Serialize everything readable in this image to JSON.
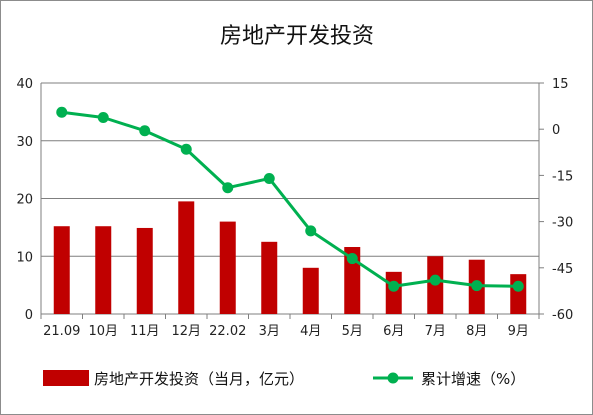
{
  "chart_data": {
    "title": "房地产开发投资",
    "type": "bar+line",
    "categories": [
      "21.09",
      "10月",
      "11月",
      "12月",
      "22.02",
      "3月",
      "4月",
      "5月",
      "6月",
      "7月",
      "8月",
      "9月"
    ],
    "series": [
      {
        "name": "房地产开发投资（当月，亿元）",
        "type": "bar",
        "axis": "left",
        "color": "#c00000",
        "values": [
          15.2,
          15.2,
          14.9,
          19.5,
          16.0,
          12.5,
          8.0,
          11.6,
          7.3,
          10.0,
          9.4,
          6.9
        ]
      },
      {
        "name": "累计增速（%）",
        "type": "line",
        "axis": "right",
        "color": "#00b050",
        "values": [
          5.5,
          3.8,
          -0.5,
          -6.5,
          -19.0,
          -16.0,
          -33.0,
          -42.0,
          -51.0,
          -49.0,
          -50.8,
          -51.0
        ]
      }
    ],
    "y_left": {
      "min": 0,
      "max": 40,
      "ticks": [
        0,
        10,
        20,
        30,
        40
      ]
    },
    "y_right": {
      "min": -60,
      "max": 15,
      "ticks": [
        15,
        0,
        -15,
        -30,
        -45,
        -60
      ]
    },
    "grid": true,
    "legend_position": "bottom"
  }
}
